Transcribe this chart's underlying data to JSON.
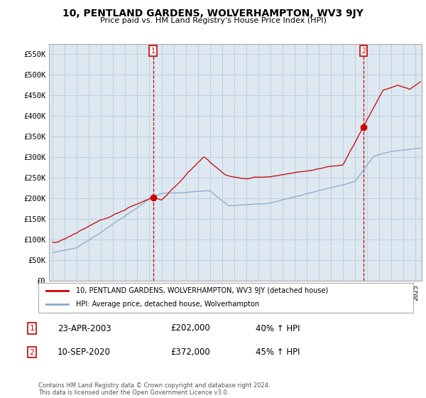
{
  "title": "10, PENTLAND GARDENS, WOLVERHAMPTON, WV3 9JY",
  "subtitle": "Price paid vs. HM Land Registry's House Price Index (HPI)",
  "ylabel_ticks": [
    "£0",
    "£50K",
    "£100K",
    "£150K",
    "£200K",
    "£250K",
    "£300K",
    "£350K",
    "£400K",
    "£450K",
    "£500K",
    "£550K"
  ],
  "ytick_values": [
    0,
    50000,
    100000,
    150000,
    200000,
    250000,
    300000,
    350000,
    400000,
    450000,
    500000,
    550000
  ],
  "ylim": [
    0,
    575000
  ],
  "xlim_start": 1994.7,
  "xlim_end": 2025.5,
  "sale1_date": 2003.31,
  "sale1_price": 202000,
  "sale2_date": 2020.69,
  "sale2_price": 372000,
  "red_color": "#cc0000",
  "blue_color": "#88aacc",
  "plot_bg_color": "#dde8f0",
  "legend_label_red": "10, PENTLAND GARDENS, WOLVERHAMPTON, WV3 9JY (detached house)",
  "legend_label_blue": "HPI: Average price, detached house, Wolverhampton",
  "table_row1": [
    "1",
    "23-APR-2003",
    "£202,000",
    "40% ↑ HPI"
  ],
  "table_row2": [
    "2",
    "10-SEP-2020",
    "£372,000",
    "45% ↑ HPI"
  ],
  "footer": "Contains HM Land Registry data © Crown copyright and database right 2024.\nThis data is licensed under the Open Government Licence v3.0.",
  "background_color": "#ffffff",
  "grid_color": "#bbccdd"
}
